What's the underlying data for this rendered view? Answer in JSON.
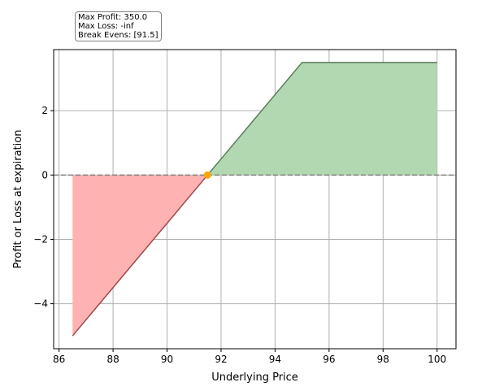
{
  "chart_data": {
    "type": "area",
    "xlabel": "Underlying Price",
    "ylabel": "Profit or Loss at expiration",
    "xlim": [
      85.8,
      100.7
    ],
    "ylim": [
      -5.4,
      3.9
    ],
    "xticks": [
      "86",
      "88",
      "90",
      "92",
      "94",
      "96",
      "98",
      "100"
    ],
    "yticks": [
      "−4",
      "−2",
      "0",
      "2"
    ],
    "grid": true,
    "payoff_line": {
      "x": [
        86.5,
        91.5,
        95.0,
        100.0
      ],
      "y": [
        -5.0,
        0.0,
        3.5,
        3.5
      ]
    },
    "zero_line": {
      "y": 0,
      "style": "dashed"
    },
    "break_even_marker": {
      "x": 91.5,
      "y": 0
    },
    "info_box": {
      "max_profit": "Max Profit: 350.0",
      "max_loss": "Max Loss: -inf",
      "break_evens": "Break Evens: [91.5]"
    },
    "colors": {
      "profit_fill": "#b2d8b2",
      "loss_fill": "#ffb2b2",
      "profit_line": "#5a7a5a",
      "loss_line": "#a04848",
      "marker": "#ffa500",
      "zero_line": "#808080",
      "grid": "#b0b0b0"
    }
  }
}
